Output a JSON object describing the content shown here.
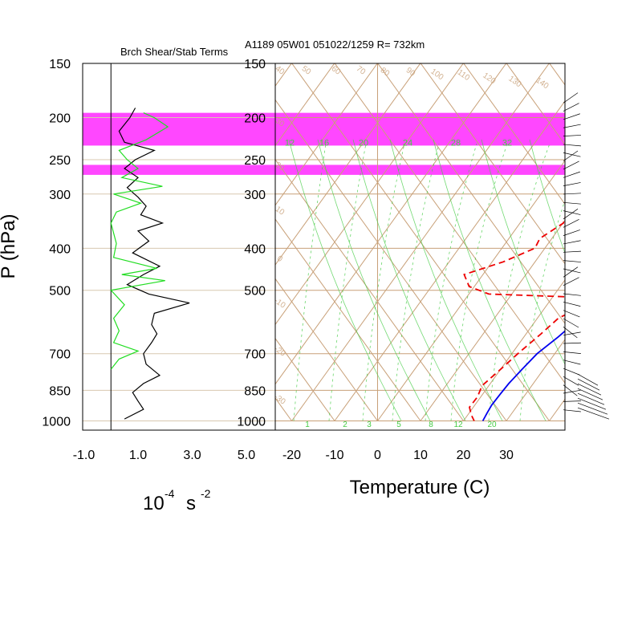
{
  "header": {
    "left_title": "Brch Shear/Stab Terms",
    "right_title": "A1189 05W01 051022/1259 R= 732km"
  },
  "y_axis": {
    "label": "P (hPa)",
    "ticks": [
      "150",
      "200",
      "250",
      "300",
      "400",
      "500",
      "700",
      "850",
      "1000"
    ]
  },
  "left_panel": {
    "x_ticks": [
      "-1.0",
      "1.0",
      "3.0",
      "5.0"
    ],
    "unit_base": "10",
    "unit_exp": "-4",
    "unit_s": "s",
    "unit_exp2": "-2"
  },
  "right_panel": {
    "x_ticks": [
      "-20",
      "-10",
      "0",
      "10",
      "20",
      "30"
    ],
    "x_label": "Temperature (C)",
    "mixing_ratio_labels": [
      "1",
      "2",
      "3",
      "5",
      "8",
      "12",
      "20"
    ],
    "moist_adiabat_labels": [
      "12",
      "16",
      "20",
      "24",
      "28",
      "32"
    ],
    "theta_labels": [
      "-30",
      "-20",
      "-10",
      "0",
      "10",
      "20",
      "30",
      "40",
      "50",
      "60",
      "70",
      "80",
      "90",
      "100",
      "110",
      "120",
      "130",
      "140",
      "150"
    ]
  },
  "colors": {
    "highlight": "#ff33ff",
    "dry_adiabat": "#c8a078",
    "moist_adiabat": "#44cc44",
    "temperature": "#0000ee",
    "dewpoint": "#ee0000",
    "shear": "#000000",
    "stability": "#22dd22"
  },
  "chart_data": [
    {
      "type": "line",
      "title": "Brch Shear/Stab Terms",
      "ylabel": "P (hPa)",
      "y_scale": "log-pressure",
      "ylim": [
        1000,
        150
      ],
      "xlim": [
        -1.0,
        5.0
      ],
      "series": [
        {
          "color": "#000000",
          "points": [
            [
              0.9,
              190
            ],
            [
              0.7,
              200
            ],
            [
              0.3,
              215
            ],
            [
              0.5,
              228
            ],
            [
              1.6,
              238
            ],
            [
              0.9,
              250
            ],
            [
              0.5,
              262
            ],
            [
              1.0,
              275
            ],
            [
              0.6,
              290
            ],
            [
              1.0,
              305
            ],
            [
              1.3,
              320
            ],
            [
              1.1,
              335
            ],
            [
              1.9,
              350
            ],
            [
              1.0,
              365
            ],
            [
              1.4,
              385
            ],
            [
              0.8,
              410
            ],
            [
              1.8,
              440
            ],
            [
              1.2,
              460
            ],
            [
              0.6,
              485
            ],
            [
              1.4,
              510
            ],
            [
              2.9,
              535
            ],
            [
              1.6,
              565
            ],
            [
              1.5,
              600
            ],
            [
              1.7,
              630
            ],
            [
              1.5,
              660
            ],
            [
              1.2,
              700
            ],
            [
              1.3,
              740
            ],
            [
              1.8,
              785
            ],
            [
              1.2,
              820
            ],
            [
              0.8,
              860
            ],
            [
              1.0,
              900
            ],
            [
              1.2,
              940
            ],
            [
              0.5,
              990
            ]
          ]
        },
        {
          "color": "#22dd22",
          "points": [
            [
              1.2,
              195
            ],
            [
              1.6,
              200
            ],
            [
              2.1,
              210
            ],
            [
              1.3,
              225
            ],
            [
              0.3,
              238
            ],
            [
              0.6,
              250
            ],
            [
              1.0,
              262
            ],
            [
              0.4,
              275
            ],
            [
              1.9,
              288
            ],
            [
              0.1,
              300
            ],
            [
              1.1,
              315
            ],
            [
              0.2,
              330
            ],
            [
              0.0,
              350
            ],
            [
              0.2,
              390
            ],
            [
              0.1,
              420
            ],
            [
              1.7,
              445
            ],
            [
              0.4,
              460
            ],
            [
              2.0,
              475
            ],
            [
              0.0,
              500
            ],
            [
              0.5,
              540
            ],
            [
              0.1,
              580
            ],
            [
              0.3,
              620
            ],
            [
              0.1,
              660
            ],
            [
              1.0,
              690
            ],
            [
              0.3,
              720
            ],
            [
              0.0,
              760
            ]
          ]
        }
      ]
    },
    {
      "type": "line",
      "title": "A1189 05W01 051022/1259 R= 732km",
      "xlabel": "Temperature (C)",
      "ylabel": "P (hPa)",
      "y_scale": "log-pressure",
      "ylim": [
        1000,
        150
      ],
      "xlim": [
        -24,
        40
      ],
      "series": [
        {
          "color": "#0000ee",
          "style": "solid",
          "points": [
            [
              -1.0,
              175
            ],
            [
              1.0,
              200
            ],
            [
              2.5,
              225
            ],
            [
              3.5,
              250
            ],
            [
              5.0,
              275
            ],
            [
              6.5,
              300
            ],
            [
              8.5,
              325
            ],
            [
              10.0,
              350
            ],
            [
              11.5,
              375
            ],
            [
              12.5,
              400
            ],
            [
              13.5,
              440
            ],
            [
              14.0,
              480
            ],
            [
              15.5,
              500
            ],
            [
              14.5,
              540
            ],
            [
              14.0,
              580
            ],
            [
              15.0,
              640
            ],
            [
              15.5,
              700
            ],
            [
              17.0,
              760
            ],
            [
              18.5,
              820
            ],
            [
              20.0,
              870
            ],
            [
              21.5,
              920
            ],
            [
              23.0,
              960
            ],
            [
              24.5,
              1000
            ]
          ]
        },
        {
          "color": "#ee0000",
          "style": "dashed",
          "points": [
            [
              -12.0,
              200
            ],
            [
              -9.0,
              215
            ],
            [
              -5.0,
              230
            ],
            [
              -4.0,
              245
            ],
            [
              -4.0,
              255
            ],
            [
              -7.0,
              260
            ],
            [
              -15.0,
              265
            ],
            [
              -21.0,
              275
            ],
            [
              -24.0,
              300
            ],
            [
              -24.0,
              325
            ],
            [
              -20.5,
              350
            ],
            [
              -21.0,
              380
            ],
            [
              -19.0,
              400
            ],
            [
              -22.0,
              430
            ],
            [
              -27.0,
              460
            ],
            [
              -22.0,
              490
            ],
            [
              -15.0,
              510
            ],
            [
              10.0,
              520
            ],
            [
              11.0,
              540
            ],
            [
              9.0,
              580
            ],
            [
              10.0,
              630
            ],
            [
              11.0,
              700
            ],
            [
              12.0,
              760
            ],
            [
              13.0,
              830
            ],
            [
              15.5,
              880
            ],
            [
              17.0,
              930
            ],
            [
              20.0,
              970
            ],
            [
              22.5,
              1000
            ]
          ]
        }
      ]
    }
  ]
}
